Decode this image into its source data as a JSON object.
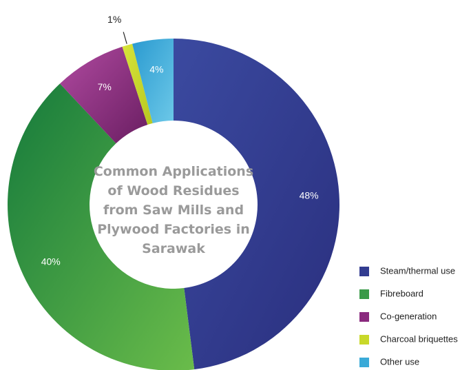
{
  "chart_data": {
    "type": "donut",
    "title": "Common Applications of Wood Residues from Saw Mills and Plywood Factories in Sarawak",
    "categories": [
      "Steam/thermal use",
      "Fibreboard",
      "Co-generation",
      "Charcoal briquettes",
      "Other use"
    ],
    "values": [
      48,
      40,
      7,
      1,
      4
    ],
    "value_labels": [
      "48%",
      "40%",
      "7%",
      "1%",
      "4%"
    ],
    "colors": [
      "#323c90",
      "#3a9a48",
      "#8a2a7e",
      "#c8d82a",
      "#3aaad8"
    ],
    "legend": "bottom-right"
  }
}
